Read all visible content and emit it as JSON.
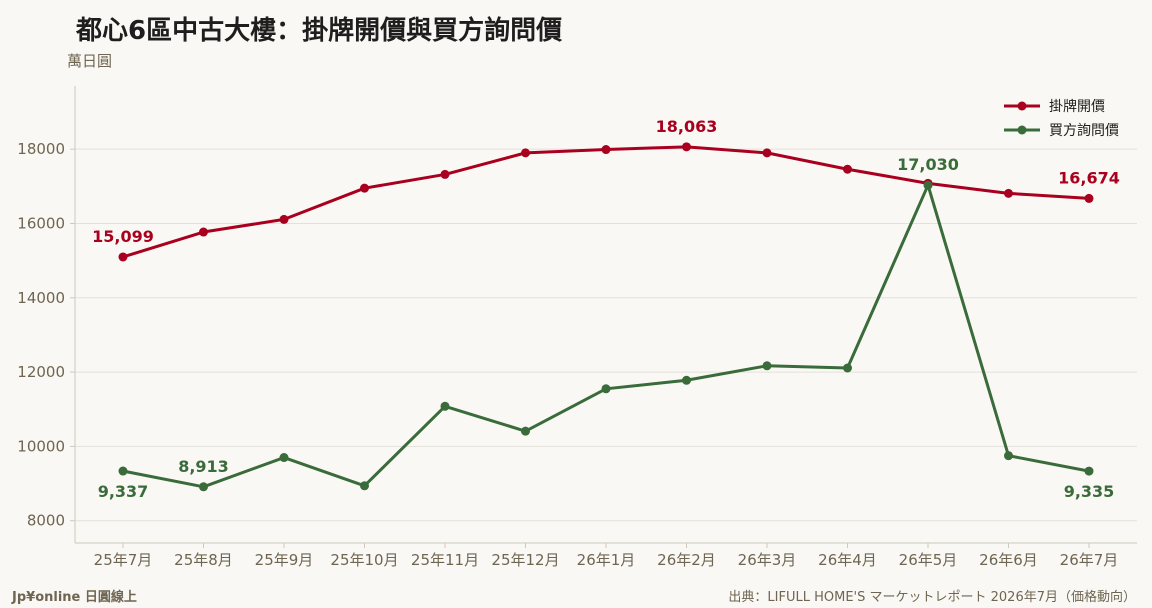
{
  "title": "都心6區中古大樓：掛牌開價與買方詢問價",
  "unit": "萬日圓",
  "footer": {
    "brand": "Jp¥online 日圓線上",
    "source": "出典：LIFULL HOME'S マーケットレポート 2026年7月（価格動向）"
  },
  "colors": {
    "background": "#faf8f4",
    "grid": "#e4e1da",
    "axis": "#cfc9bd",
    "ask": "#a8001e",
    "inquiry": "#3a6b3a"
  },
  "chart_data": {
    "type": "line",
    "title": "都心6區中古大樓：掛牌開價與買方詢問價",
    "ylabel": "萬日圓",
    "categories": [
      "25年7月",
      "25年8月",
      "25年9月",
      "25年10月",
      "25年11月",
      "25年12月",
      "26年1月",
      "26年2月",
      "26年3月",
      "26年4月",
      "26年5月",
      "26年6月",
      "26年7月"
    ],
    "ylim": [
      7400,
      19700
    ],
    "yticks": [
      8000,
      10000,
      12000,
      14000,
      16000,
      18000
    ],
    "grid": true,
    "legend": "top-right",
    "series": [
      {
        "name": "掛牌開價",
        "color": "#a8001e",
        "values": [
          15099,
          15770,
          16110,
          16950,
          17320,
          17900,
          17990,
          18063,
          17900,
          17460,
          17080,
          16810,
          16674
        ],
        "labels": [
          {
            "index": 0,
            "text": "15,099",
            "pos": "above"
          },
          {
            "index": 7,
            "text": "18,063",
            "pos": "above"
          },
          {
            "index": 12,
            "text": "16,674",
            "pos": "above"
          }
        ]
      },
      {
        "name": "買方詢問價",
        "color": "#3a6b3a",
        "values": [
          9337,
          8913,
          9700,
          8940,
          11080,
          10410,
          11550,
          11780,
          12170,
          12110,
          17030,
          9750,
          9335
        ],
        "labels": [
          {
            "index": 0,
            "text": "9,337",
            "pos": "below"
          },
          {
            "index": 1,
            "text": "8,913",
            "pos": "above"
          },
          {
            "index": 10,
            "text": "17,030",
            "pos": "above"
          },
          {
            "index": 12,
            "text": "9,335",
            "pos": "below"
          }
        ]
      }
    ]
  }
}
